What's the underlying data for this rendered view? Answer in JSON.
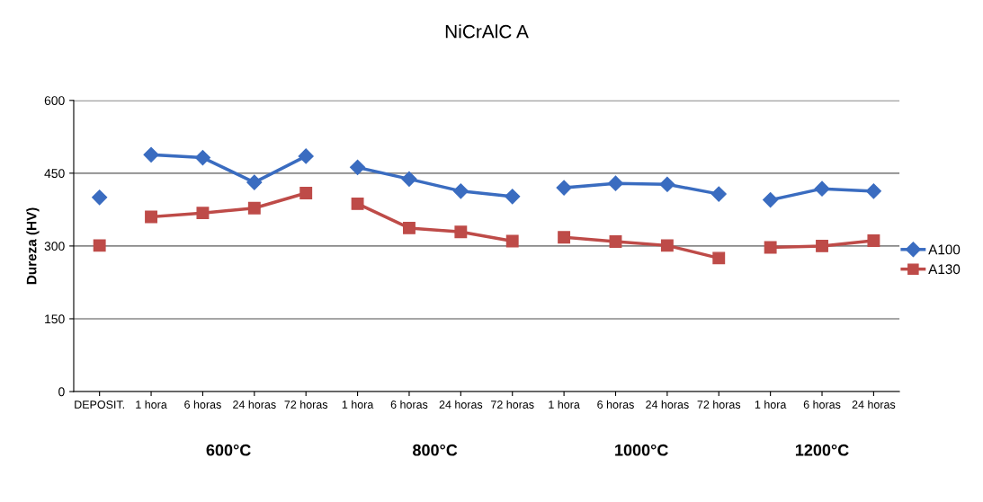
{
  "chart_data": {
    "type": "line",
    "title": "NiCrAlC A",
    "ylabel": "Dureza (HV)",
    "categories": [
      "DEPOSIT.",
      "1 hora",
      "6 horas",
      "24 horas",
      "72 horas",
      "1 hora",
      "6 horas",
      "24 horas",
      "72 horas",
      "1 hora",
      "6 horas",
      "24 horas",
      "72 horas",
      "1 hora",
      "6 horas",
      "24 horas"
    ],
    "series": [
      {
        "name": "A100",
        "color": "#3a6cc0",
        "marker": "diamond",
        "values": [
          400,
          null,
          null,
          null,
          null,
          null,
          null,
          null,
          null,
          null,
          null,
          null,
          null,
          null,
          null,
          null
        ]
      },
      {
        "color": "#3a6cc0",
        "marker": "diamond",
        "values": [
          null,
          488,
          482,
          431,
          485,
          null,
          null,
          null,
          null,
          null,
          null,
          null,
          null,
          null,
          null,
          null
        ]
      },
      {
        "color": "#3a6cc0",
        "marker": "diamond",
        "values": [
          null,
          null,
          null,
          null,
          null,
          462,
          438,
          413,
          402,
          null,
          null,
          null,
          null,
          null,
          null,
          null
        ]
      },
      {
        "color": "#3a6cc0",
        "marker": "diamond",
        "values": [
          null,
          null,
          null,
          null,
          null,
          null,
          null,
          null,
          null,
          420,
          429,
          427,
          407,
          null,
          null,
          null
        ]
      },
      {
        "color": "#3a6cc0",
        "marker": "diamond",
        "values": [
          null,
          null,
          null,
          null,
          null,
          null,
          null,
          null,
          null,
          null,
          null,
          null,
          null,
          395,
          418,
          413
        ]
      },
      {
        "name": "A130",
        "color": "#be4b48",
        "marker": "square",
        "values": [
          301,
          null,
          null,
          null,
          null,
          null,
          null,
          null,
          null,
          null,
          null,
          null,
          null,
          null,
          null,
          null
        ]
      },
      {
        "color": "#be4b48",
        "marker": "square",
        "values": [
          null,
          360,
          368,
          378,
          409,
          null,
          null,
          null,
          null,
          null,
          null,
          null,
          null,
          null,
          null,
          null
        ]
      },
      {
        "color": "#be4b48",
        "marker": "square",
        "values": [
          null,
          null,
          null,
          null,
          null,
          387,
          337,
          329,
          310,
          null,
          null,
          null,
          null,
          null,
          null,
          null
        ]
      },
      {
        "color": "#be4b48",
        "marker": "square",
        "values": [
          null,
          null,
          null,
          null,
          null,
          null,
          null,
          null,
          null,
          318,
          309,
          301,
          275,
          null,
          null,
          null
        ]
      },
      {
        "color": "#be4b48",
        "marker": "square",
        "values": [
          null,
          null,
          null,
          null,
          null,
          null,
          null,
          null,
          null,
          null,
          null,
          null,
          null,
          297,
          300,
          311
        ]
      }
    ],
    "ylim": [
      0,
      600
    ],
    "yticks": [
      0,
      150,
      300,
      450,
      600
    ],
    "grid": "y",
    "legend": "right",
    "line_style": "solid",
    "annotations": [
      "600°C",
      "800°C",
      "1000°C",
      "1200°C"
    ]
  }
}
